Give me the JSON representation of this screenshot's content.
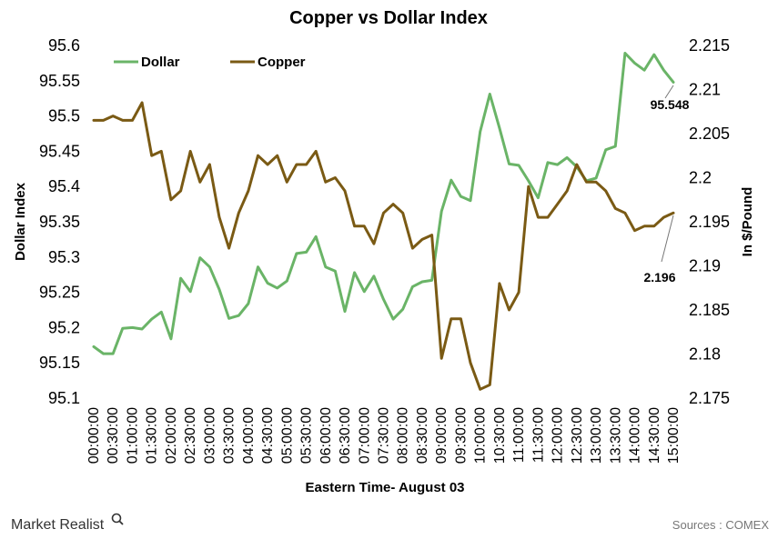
{
  "chart_data": {
    "type": "line",
    "title": "Copper vs Dollar Index",
    "xlabel": "Eastern Time- August 03",
    "ylabel_left": "Dollar Index",
    "ylabel_right": "In $/Pound",
    "legend_position": "top-left",
    "grid": false,
    "ylim_left": [
      95.1,
      95.6
    ],
    "ylim_right": [
      2.175,
      2.215
    ],
    "yticks_left": [
      "95.1",
      "95.15",
      "95.2",
      "95.25",
      "95.3",
      "95.35",
      "95.4",
      "95.45",
      "95.5",
      "95.55",
      "95.6"
    ],
    "yticks_right": [
      "2.175",
      "2.18",
      "2.185",
      "2.19",
      "2.195",
      "2.2",
      "2.205",
      "2.21",
      "2.215"
    ],
    "x_tick_labels": [
      "00:00:00",
      "00:30:00",
      "01:00:00",
      "01:30:00",
      "02:00:00",
      "02:30:00",
      "03:00:00",
      "03:30:00",
      "04:00:00",
      "04:30:00",
      "05:00:00",
      "05:30:00",
      "06:00:00",
      "06:30:00",
      "07:00:00",
      "07:30:00",
      "08:00:00",
      "08:30:00",
      "09:00:00",
      "09:30:00",
      "10:00:00",
      "10:30:00",
      "11:00:00",
      "11:30:00",
      "12:00:00",
      "12:30:00",
      "13:00:00",
      "13:30:00",
      "14:00:00",
      "14:30:00",
      "15:00:00"
    ],
    "n_points": 61,
    "series": [
      {
        "name": "Dollar",
        "axis": "left",
        "color": "#6ab467",
        "values": [
          95.173,
          95.163,
          95.163,
          95.199,
          95.2,
          95.198,
          95.212,
          95.222,
          95.184,
          95.27,
          95.251,
          95.299,
          95.286,
          95.254,
          95.213,
          95.217,
          95.234,
          95.286,
          95.263,
          95.256,
          95.266,
          95.305,
          95.307,
          95.329,
          95.286,
          95.28,
          95.223,
          95.278,
          95.251,
          95.273,
          95.24,
          95.212,
          95.226,
          95.258,
          95.265,
          95.267,
          95.365,
          95.409,
          95.386,
          95.38,
          95.478,
          95.531,
          95.483,
          95.432,
          95.43,
          95.408,
          95.384,
          95.434,
          95.431,
          95.441,
          95.428,
          95.408,
          95.412,
          95.452,
          95.457,
          95.589,
          95.575,
          95.565,
          95.587,
          95.565,
          95.548
        ]
      },
      {
        "name": "Copper",
        "axis": "right",
        "color": "#7a5a14",
        "values": [
          2.2065,
          2.2065,
          2.207,
          2.2065,
          2.2065,
          2.2085,
          2.2025,
          2.203,
          2.1975,
          2.1985,
          2.203,
          2.1995,
          2.2015,
          2.1955,
          2.192,
          2.196,
          2.1985,
          2.2025,
          2.2015,
          2.2025,
          2.1995,
          2.2015,
          2.2015,
          2.203,
          2.1995,
          2.2,
          2.1985,
          2.1945,
          2.1945,
          2.1925,
          2.196,
          2.197,
          2.196,
          2.192,
          2.193,
          2.1935,
          2.1795,
          2.184,
          2.184,
          2.179,
          2.176,
          2.1765,
          2.188,
          2.185,
          2.187,
          2.199,
          2.1955,
          2.1955,
          2.197,
          2.1985,
          2.2015,
          2.1995,
          2.1995,
          2.1985,
          2.1965,
          2.196,
          2.194,
          2.1945,
          2.1945,
          2.1955,
          2.196
        ]
      }
    ],
    "annotations": [
      {
        "text": "95.548",
        "series": "Dollar"
      },
      {
        "text": "2.196",
        "series": "Copper"
      }
    ]
  },
  "branding": {
    "logo_text": "Market Realist",
    "logo_icon": "magnifier-icon",
    "source_text": "Sources : COMEX"
  }
}
